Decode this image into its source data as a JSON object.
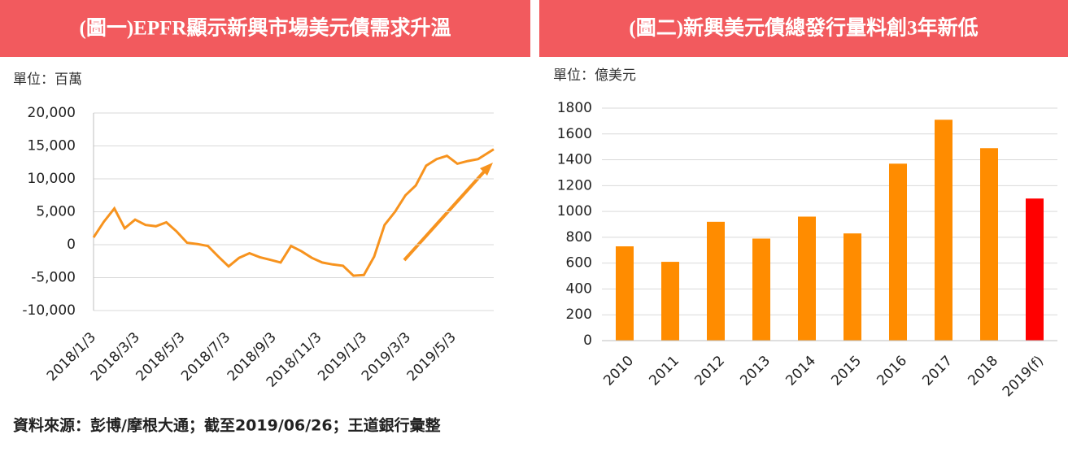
{
  "chart_data": [
    {
      "type": "line",
      "title": "(圖一)EPFR顯示新興市場美元債需求升溫",
      "unit": "單位：百萬",
      "color": "#f7931e",
      "x": [
        "2018/1/3",
        "2018/1/17",
        "2018/1/31",
        "2018/2/14",
        "2018/2/28",
        "2018/3/14",
        "2018/3/28",
        "2018/4/11",
        "2018/4/25",
        "2018/5/9",
        "2018/5/23",
        "2018/6/6",
        "2018/6/20",
        "2018/7/4",
        "2018/7/18",
        "2018/8/1",
        "2018/8/15",
        "2018/8/29",
        "2018/9/12",
        "2018/9/26",
        "2018/10/10",
        "2018/10/24",
        "2018/11/7",
        "2018/11/21",
        "2018/12/5",
        "2018/12/19",
        "2019/1/2",
        "2019/1/16",
        "2019/1/30",
        "2019/2/13",
        "2019/2/27",
        "2019/3/13",
        "2019/3/27",
        "2019/4/10",
        "2019/4/24",
        "2019/5/8",
        "2019/5/22",
        "2019/6/5",
        "2019/6/19",
        "2019/6/26"
      ],
      "values": [
        1100,
        3500,
        5500,
        2500,
        3800,
        3000,
        2800,
        3400,
        2000,
        300,
        100,
        -200,
        -1800,
        -3300,
        -2000,
        -1300,
        -1900,
        -2300,
        -2700,
        -200,
        -1000,
        -2000,
        -2700,
        -3000,
        -3200,
        -4700,
        -4600,
        -1800,
        3000,
        5000,
        7500,
        9000,
        12000,
        13000,
        13500,
        12300,
        12700,
        13000,
        14000,
        14500
      ],
      "xlim": [
        "2018/1/3",
        "2019/6/26"
      ],
      "xticks": [
        "2018/1/3",
        "2018/3/3",
        "2018/5/3",
        "2018/7/3",
        "2018/9/3",
        "2018/11/3",
        "2019/1/3",
        "2019/3/3",
        "2019/5/3"
      ],
      "ylim": [
        -10000,
        20000
      ],
      "yticks": [
        {
          "value": -10000,
          "label": "-10,000"
        },
        {
          "value": -5000,
          "label": "-5,000"
        },
        0,
        {
          "value": 5000,
          "label": "5,000"
        },
        {
          "value": 10000,
          "label": "10,000"
        },
        {
          "value": 15000,
          "label": "15,000"
        },
        {
          "value": 20000,
          "label": "20,000"
        }
      ],
      "grid": true
    },
    {
      "type": "bar",
      "title": "(圖二)新興美元債總發行量料創3年新低",
      "unit": "單位：億美元",
      "categories": [
        "2010",
        "2011",
        "2012",
        "2013",
        "2014",
        "2015",
        "2016",
        "2017",
        "2018",
        "2019(f)"
      ],
      "values": [
        730,
        610,
        920,
        790,
        960,
        830,
        1370,
        1710,
        1490,
        1100
      ],
      "colors": [
        "#ff8c00",
        "#ff8c00",
        "#ff8c00",
        "#ff8c00",
        "#ff8c00",
        "#ff8c00",
        "#ff8c00",
        "#ff8c00",
        "#ff8c00",
        "#ff0000"
      ],
      "ylim": [
        0,
        1800
      ],
      "yticks": [
        0,
        200,
        400,
        600,
        800,
        1000,
        1200,
        1400,
        1600,
        1800
      ],
      "grid": true
    }
  ],
  "source": "資料來源：彭博/摩根大通；截至2019/06/26；王道銀行彙整"
}
